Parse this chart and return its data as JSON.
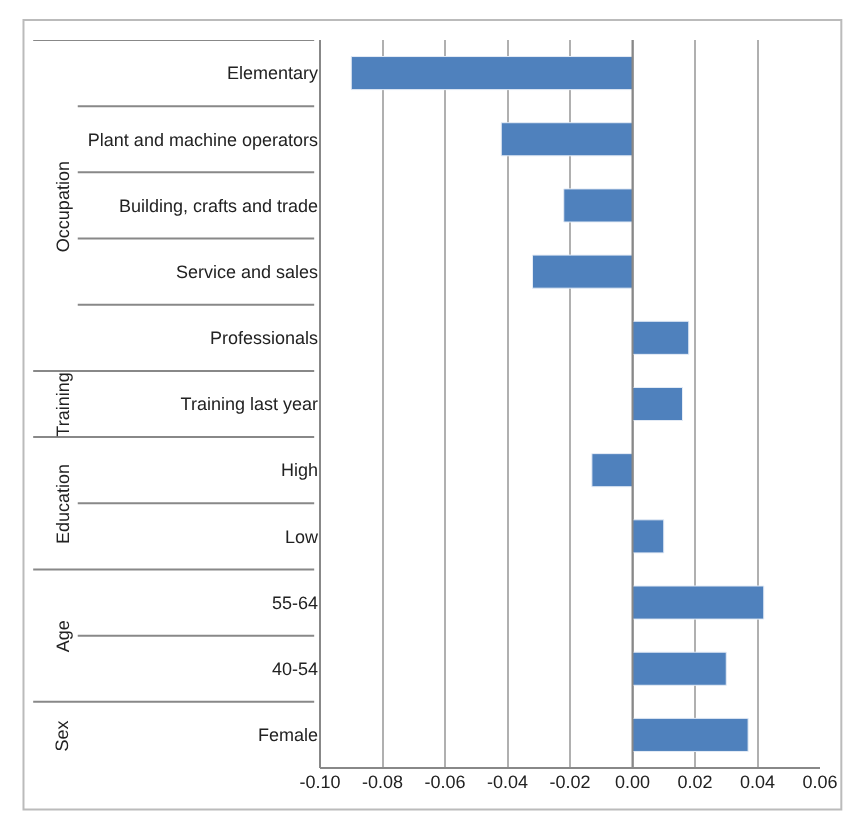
{
  "chart_data": {
    "type": "bar",
    "orientation": "horizontal",
    "categories": [
      "Elementary",
      "Plant and machine operators",
      "Building, crafts and trade",
      "Service and sales",
      "Professionals",
      "Training last year",
      "High",
      "Low",
      "55-64",
      "40-54",
      "Female"
    ],
    "values": [
      -0.09,
      -0.042,
      -0.022,
      -0.032,
      0.018,
      0.016,
      -0.013,
      0.01,
      0.042,
      0.03,
      0.037
    ],
    "color": "#4f81bd",
    "xlim": [
      -0.1,
      0.06
    ],
    "xticks": [
      {
        "value": -0.1,
        "label": "-0.10"
      },
      {
        "value": -0.08,
        "label": "-0.08"
      },
      {
        "value": -0.06,
        "label": "-0.06"
      },
      {
        "value": -0.04,
        "label": "-0.04"
      },
      {
        "value": -0.02,
        "label": "-0.02"
      },
      {
        "value": 0,
        "label": "0.00"
      },
      {
        "value": 0.02,
        "label": "0.02"
      },
      {
        "value": 0.04,
        "label": "0.04"
      },
      {
        "value": 0.06,
        "label": "0.06"
      }
    ],
    "grid": "x",
    "legend": false,
    "annotations": [
      "Occupation",
      "Training",
      "Education",
      "Age",
      "Sex"
    ]
  }
}
